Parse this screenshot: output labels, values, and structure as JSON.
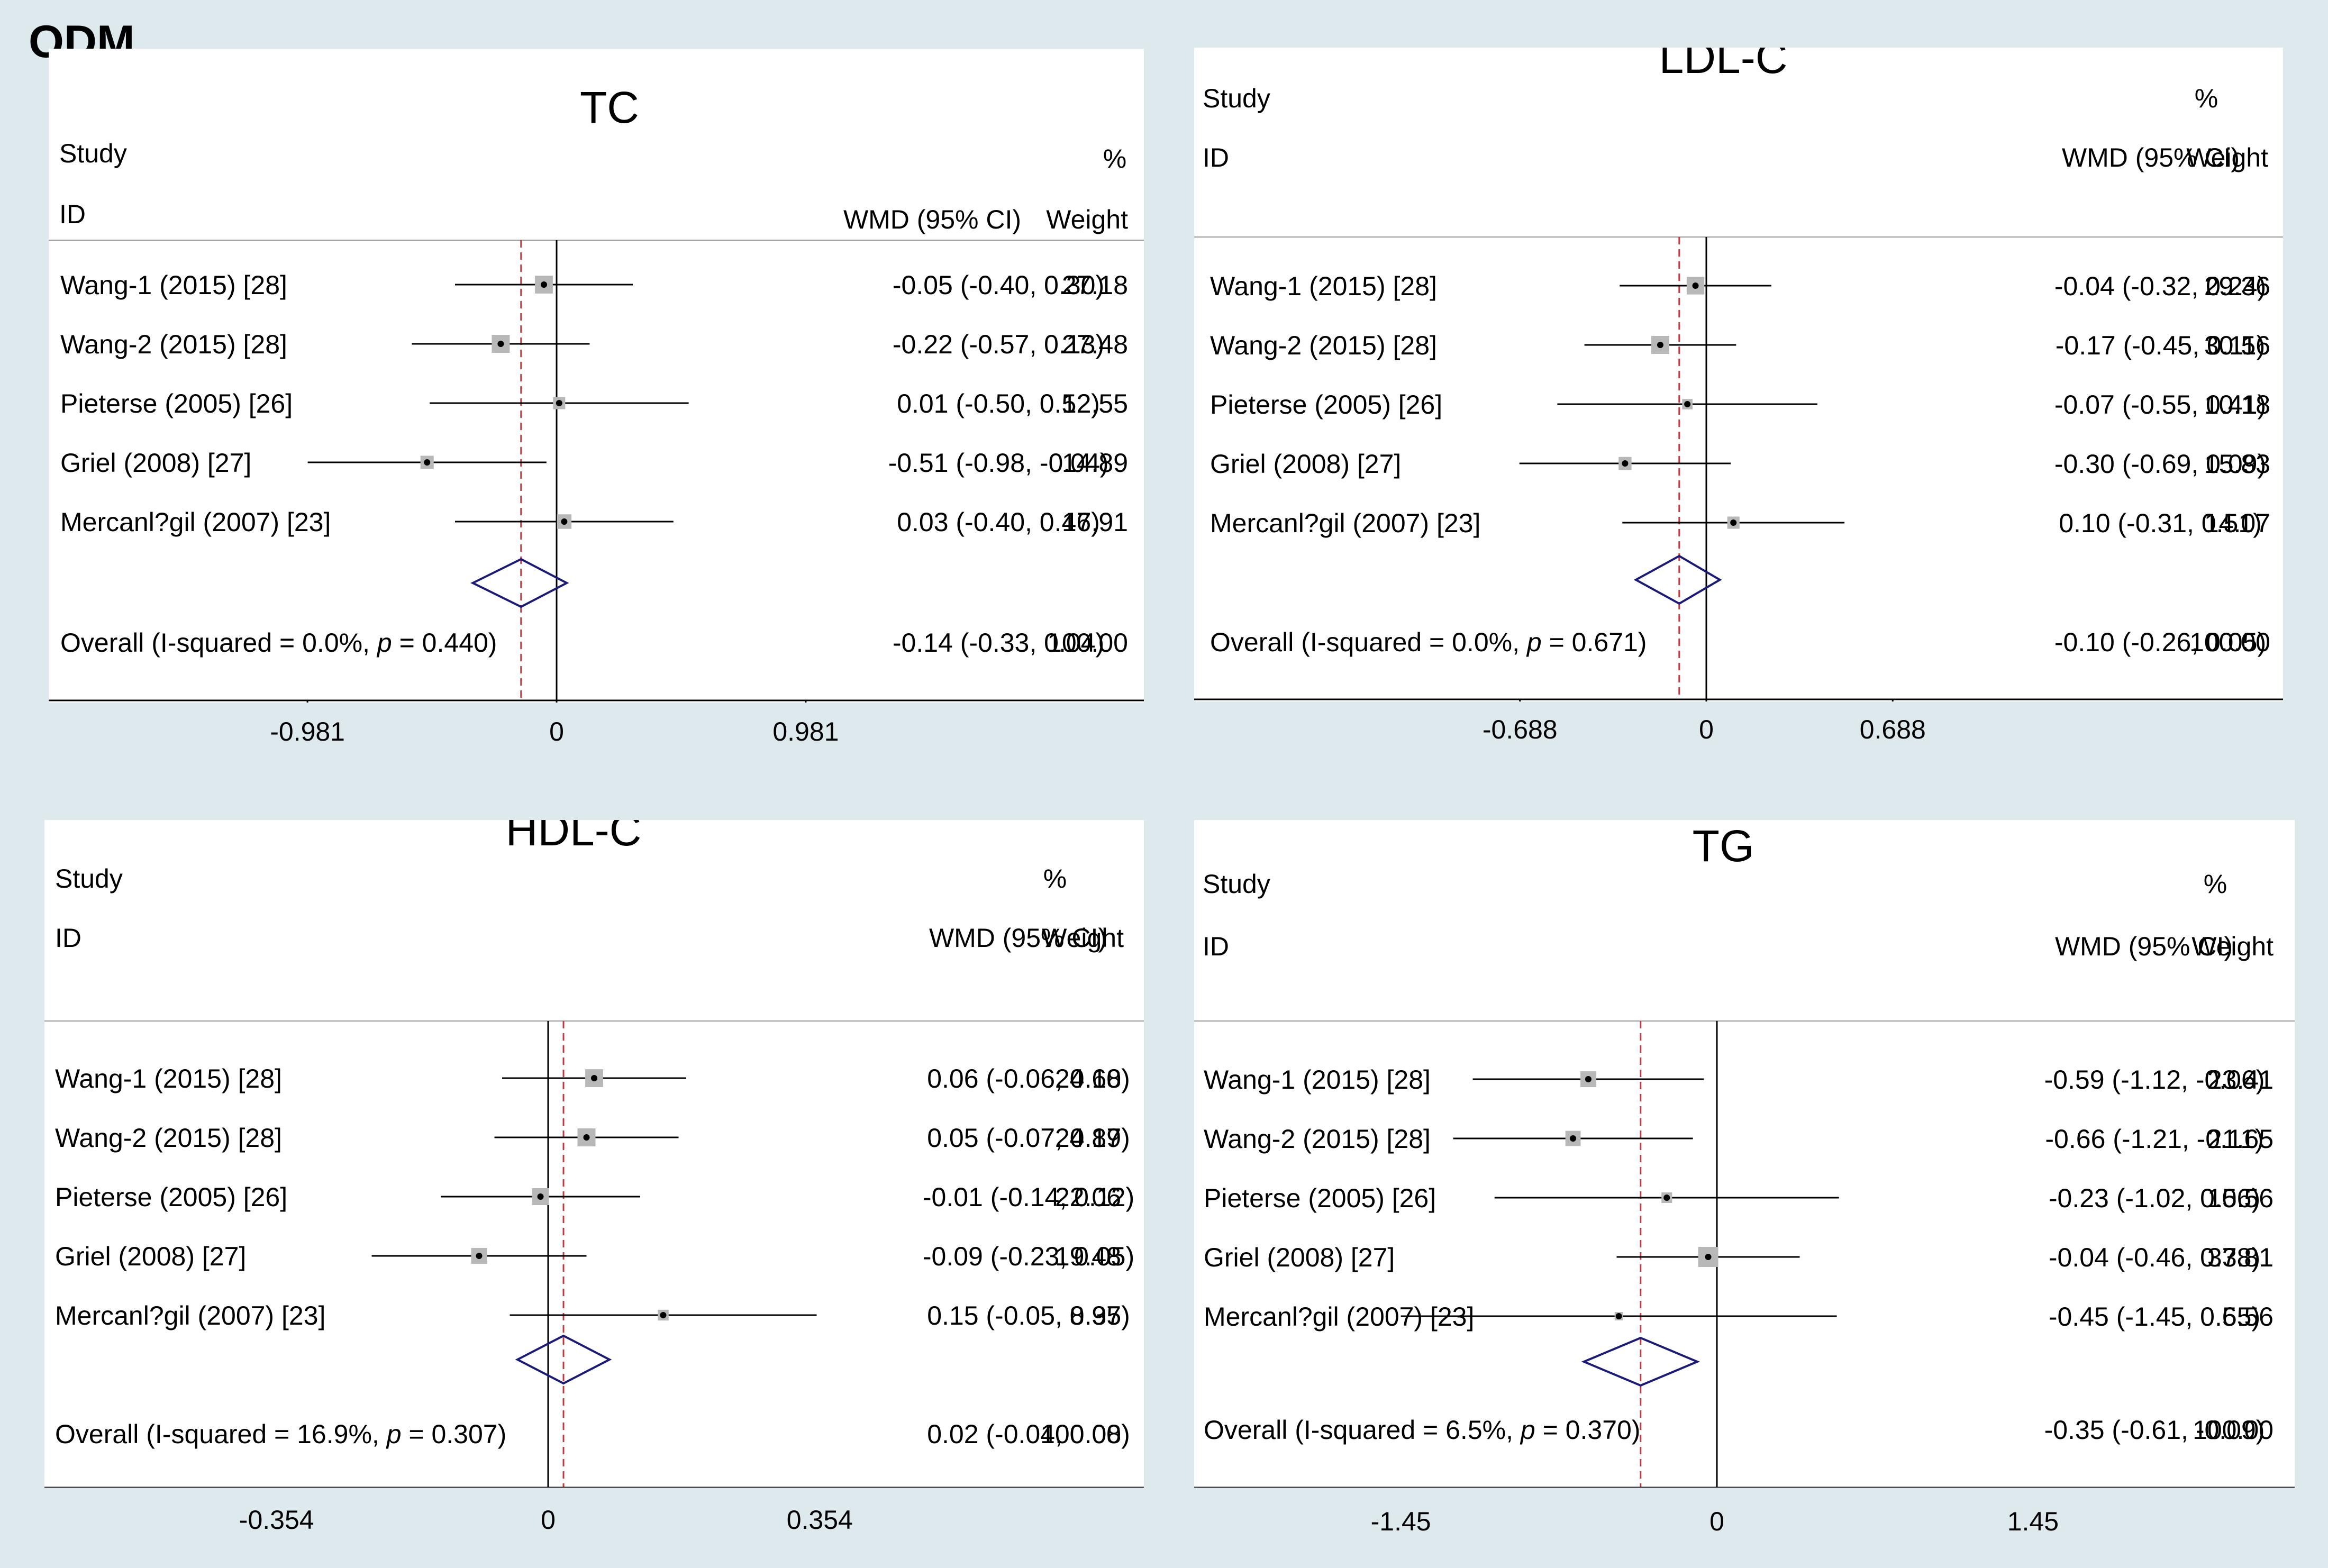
{
  "figure_label": "ODM",
  "colors": {
    "background": "#dde9ec",
    "panel": "#ffffff",
    "null_line": "#000000",
    "overall_line": "#c4383e",
    "diamond": "#1a1a7a",
    "marker": "#b8b8b8"
  },
  "chart_data": [
    {
      "type": "forest",
      "panel_title": "TC",
      "headers": {
        "study": "Study",
        "id": "ID",
        "effect": "WMD (95% CI)",
        "weight_pct": "%",
        "weight": "Weight"
      },
      "xticks": [
        "-0.981",
        "0",
        "0.981"
      ],
      "xlim": [
        -0.981,
        0.981
      ],
      "studies": [
        {
          "label": "Wang-1 (2015) [28]",
          "est": -0.05,
          "lo": -0.4,
          "hi": 0.3,
          "ci_text": "-0.05 (-0.40, 0.30)",
          "weight": "27.18"
        },
        {
          "label": "Wang-2 (2015) [28]",
          "est": -0.22,
          "lo": -0.57,
          "hi": 0.13,
          "ci_text": "-0.22 (-0.57, 0.13)",
          "weight": "27.48"
        },
        {
          "label": "Pieterse (2005) [26]",
          "est": 0.01,
          "lo": -0.5,
          "hi": 0.52,
          "ci_text": "0.01 (-0.50, 0.52)",
          "weight": "12.55"
        },
        {
          "label": "Griel (2008) [27]",
          "est": -0.51,
          "lo": -0.98,
          "hi": -0.04,
          "ci_text": "-0.51 (-0.98, -0.04)",
          "weight": "14.89"
        },
        {
          "label": "Mercanl?gil (2007) [23]",
          "est": 0.03,
          "lo": -0.4,
          "hi": 0.46,
          "ci_text": "0.03 (-0.40, 0.46)",
          "weight": "17.91"
        }
      ],
      "overall": {
        "label_pre": "Overall  (I-squared = 0.0%, ",
        "p_symbol": "p",
        "label_post": " = 0.440)",
        "est": -0.14,
        "lo": -0.33,
        "hi": 0.04,
        "ci_text": "-0.14 (-0.33, 0.04)",
        "weight": "100.00"
      }
    },
    {
      "type": "forest",
      "panel_title": "LDL-C",
      "headers": {
        "study": "Study",
        "id": "ID",
        "effect": "WMD (95% CI)",
        "weight_pct": "%",
        "weight": "Weight"
      },
      "xticks": [
        "-0.688",
        "0",
        "0.688"
      ],
      "xlim": [
        -0.688,
        0.688
      ],
      "studies": [
        {
          "label": "Wang-1 (2015) [28]",
          "est": -0.04,
          "lo": -0.32,
          "hi": 0.24,
          "ci_text": "-0.04 (-0.32, 0.24)",
          "weight": "29.36"
        },
        {
          "label": "Wang-2 (2015) [28]",
          "est": -0.17,
          "lo": -0.45,
          "hi": 0.11,
          "ci_text": "-0.17 (-0.45, 0.11)",
          "weight": "30.56"
        },
        {
          "label": "Pieterse (2005) [26]",
          "est": -0.07,
          "lo": -0.55,
          "hi": 0.41,
          "ci_text": "-0.07 (-0.55, 0.41)",
          "weight": "10.18"
        },
        {
          "label": "Griel (2008) [27]",
          "est": -0.3,
          "lo": -0.69,
          "hi": 0.09,
          "ci_text": "-0.30 (-0.69, 0.09)",
          "weight": "15.83"
        },
        {
          "label": "Mercanl?gil (2007) [23]",
          "est": 0.1,
          "lo": -0.31,
          "hi": 0.51,
          "ci_text": "0.10 (-0.31, 0.51)",
          "weight": "14.07"
        }
      ],
      "overall": {
        "label_pre": "Overall  (I-squared = 0.0%, ",
        "p_symbol": "p",
        "label_post": " = 0.671)",
        "est": -0.1,
        "lo": -0.26,
        "hi": 0.05,
        "ci_text": "-0.10 (-0.26, 0.05)",
        "weight": "100.00"
      }
    },
    {
      "type": "forest",
      "panel_title": "HDL-C",
      "headers": {
        "study": "Study",
        "id": "ID",
        "effect": "WMD (95% CI)",
        "weight_pct": "%",
        "weight": "Weight"
      },
      "xticks": [
        "-0.354",
        "0",
        "0.354"
      ],
      "xlim": [
        -0.354,
        0.354
      ],
      "studies": [
        {
          "label": "Wang-1 (2015) [28]",
          "est": 0.06,
          "lo": -0.06,
          "hi": 0.18,
          "ci_text": "0.06 (-0.06, 0.18)",
          "weight": "24.60"
        },
        {
          "label": "Wang-2 (2015) [28]",
          "est": 0.05,
          "lo": -0.07,
          "hi": 0.17,
          "ci_text": "0.05 (-0.07, 0.17)",
          "weight": "24.89"
        },
        {
          "label": "Pieterse (2005) [26]",
          "est": -0.01,
          "lo": -0.14,
          "hi": 0.12,
          "ci_text": "-0.01 (-0.14, 0.12)",
          "weight": "22.06"
        },
        {
          "label": "Griel (2008) [27]",
          "est": -0.09,
          "lo": -0.23,
          "hi": 0.05,
          "ci_text": "-0.09 (-0.23, 0.05)",
          "weight": "19.48"
        },
        {
          "label": "Mercanl?gil (2007) [23]",
          "est": 0.15,
          "lo": -0.05,
          "hi": 0.35,
          "ci_text": "0.15 (-0.05, 0.35)",
          "weight": "8.97"
        }
      ],
      "overall": {
        "label_pre": "Overall  (I-squared = 16.9%, ",
        "p_symbol": "p",
        "label_post": " = 0.307)",
        "est": 0.02,
        "lo": -0.04,
        "hi": 0.08,
        "ci_text": "0.02 (-0.04, 0.08)",
        "weight": "100.00"
      }
    },
    {
      "type": "forest",
      "panel_title": "TG",
      "headers": {
        "study": "Study",
        "id": "ID",
        "effect": "WMD (95% CI)",
        "weight_pct": "%",
        "weight": "Weight"
      },
      "xticks": [
        "-1.45",
        "0",
        "1.45"
      ],
      "xlim": [
        -1.45,
        1.45
      ],
      "studies": [
        {
          "label": "Wang-1 (2015) [28]",
          "est": -0.59,
          "lo": -1.12,
          "hi": -0.06,
          "ci_text": "-0.59 (-1.12, -0.06)",
          "weight": "23.41"
        },
        {
          "label": "Wang-2 (2015) [28]",
          "est": -0.66,
          "lo": -1.21,
          "hi": -0.11,
          "ci_text": "-0.66 (-1.21, -0.11)",
          "weight": "21.65"
        },
        {
          "label": "Pieterse (2005) [26]",
          "est": -0.23,
          "lo": -1.02,
          "hi": 0.56,
          "ci_text": "-0.23 (-1.02, 0.56)",
          "weight": "10.56"
        },
        {
          "label": "Griel (2008) [27]",
          "est": -0.04,
          "lo": -0.46,
          "hi": 0.38,
          "ci_text": "-0.04 (-0.46, 0.38)",
          "weight": "37.81"
        },
        {
          "label": "Mercanl?gil (2007) [23]",
          "est": -0.45,
          "lo": -1.45,
          "hi": 0.55,
          "ci_text": "-0.45 (-1.45, 0.55)",
          "weight": "6.56"
        }
      ],
      "overall": {
        "label_pre": "Overall  (I-squared = 6.5%, ",
        "p_symbol": "p",
        "label_post": " = 0.370)",
        "est": -0.35,
        "lo": -0.61,
        "hi": -0.09,
        "ci_text": "-0.35 (-0.61, -0.09)",
        "weight": "100.00"
      }
    }
  ]
}
